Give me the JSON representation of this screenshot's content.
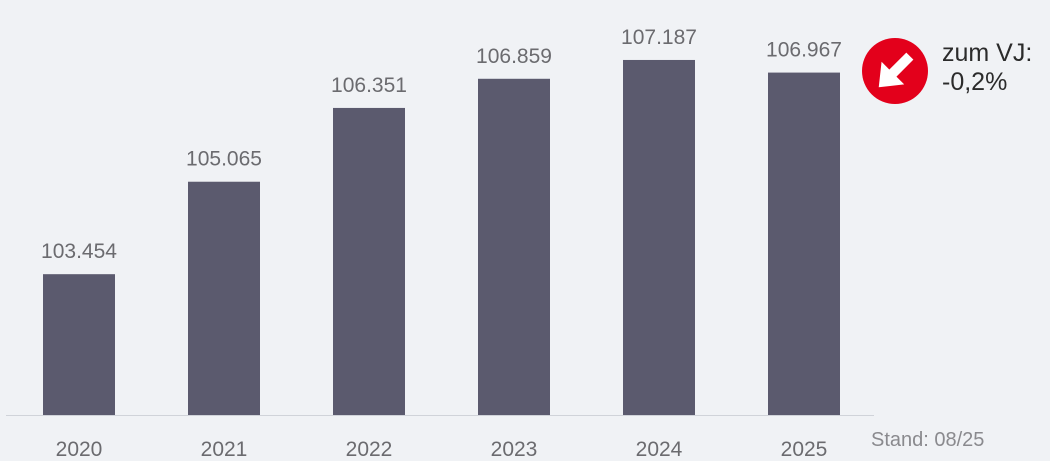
{
  "chart_data": {
    "type": "bar",
    "categories": [
      "2020",
      "2021",
      "2022",
      "2023",
      "2024",
      "2025"
    ],
    "values": [
      103454,
      105065,
      106351,
      106859,
      107187,
      106967
    ],
    "value_labels": [
      "103.454",
      "105.065",
      "106.351",
      "106.859",
      "107.187",
      "106.967"
    ],
    "title": "",
    "xlabel": "",
    "ylabel": "",
    "ylim": [
      101000,
      107500
    ],
    "grid": false,
    "colors": {
      "bar": "#5b5a6e",
      "baseline": "#d0d3d9"
    }
  },
  "trend": {
    "icon": "arrow-down-right-icon",
    "color": "#e3001b",
    "label": "zum VJ:",
    "value": "-0,2%"
  },
  "source_note": "Stand: 08/25"
}
